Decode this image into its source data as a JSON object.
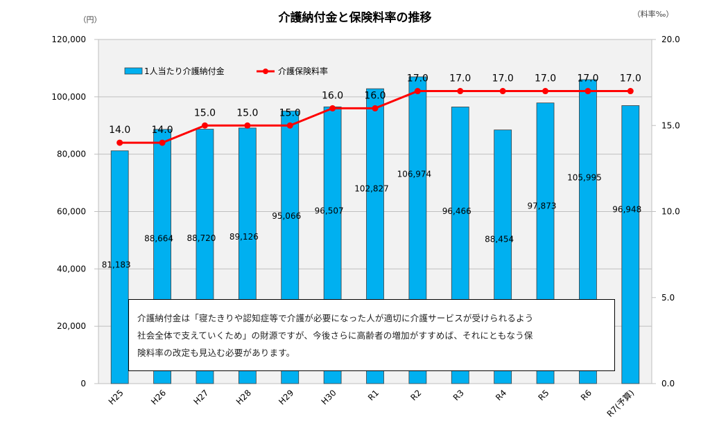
{
  "chart_data": {
    "type": "bar+line",
    "title": "介護納付金と保険料率の推移",
    "left_axis_unit": "（円）",
    "right_axis_unit": "（料率‰）",
    "categories": [
      "H25",
      "H26",
      "H27",
      "H28",
      "H29",
      "H30",
      "R1",
      "R2",
      "R3",
      "R4",
      "R5",
      "R6",
      "R7(予算)"
    ],
    "series": [
      {
        "name": "1人当たり介護納付金",
        "type": "bar",
        "axis": "left",
        "color": "#00B0F0",
        "values": [
          81183,
          88664,
          88720,
          89126,
          95066,
          96507,
          102827,
          106974,
          96466,
          88454,
          97873,
          105995,
          96948
        ],
        "labels": [
          "81,183",
          "88,664",
          "88,720",
          "89,126",
          "95,066",
          "96,507",
          "102,827",
          "106,974",
          "96,466",
          "88,454",
          "97,873",
          "105,995",
          "96,948"
        ]
      },
      {
        "name": "介護保険料率",
        "type": "line",
        "axis": "right",
        "color": "#FF0000",
        "values": [
          14.0,
          14.0,
          15.0,
          15.0,
          15.0,
          16.0,
          16.0,
          17.0,
          17.0,
          17.0,
          17.0,
          17.0,
          17.0
        ],
        "labels": [
          "14.0",
          "14.0",
          "15.0",
          "15.0",
          "15.0",
          "16.0",
          "16.0",
          "17.0",
          "17.0",
          "17.0",
          "17.0",
          "17.0",
          "17.0"
        ]
      }
    ],
    "left_axis": {
      "min": 0,
      "max": 120000,
      "ticks": [
        "0",
        "20,000",
        "40,000",
        "60,000",
        "80,000",
        "100,000",
        "120,000"
      ],
      "tick_values": [
        0,
        20000,
        40000,
        60000,
        80000,
        100000,
        120000
      ]
    },
    "right_axis": {
      "min": 0,
      "max": 20,
      "ticks": [
        "0.0",
        "5.0",
        "10.0",
        "15.0",
        "20.0"
      ],
      "tick_values": [
        0,
        5,
        10,
        15,
        20
      ]
    },
    "grid": true,
    "legend_position": "top-left",
    "annotation": {
      "lines": [
        "介護納付金は「寝たきりや認知症等で介護が必要になった人が適切に介護サービスが受けられるよう",
        "社会全体で支えていくため」の財源ですが、今後さらに高齢者の増加がすすめば、それにともなう保",
        "険料率の改定も見込む必要があります。"
      ]
    }
  }
}
